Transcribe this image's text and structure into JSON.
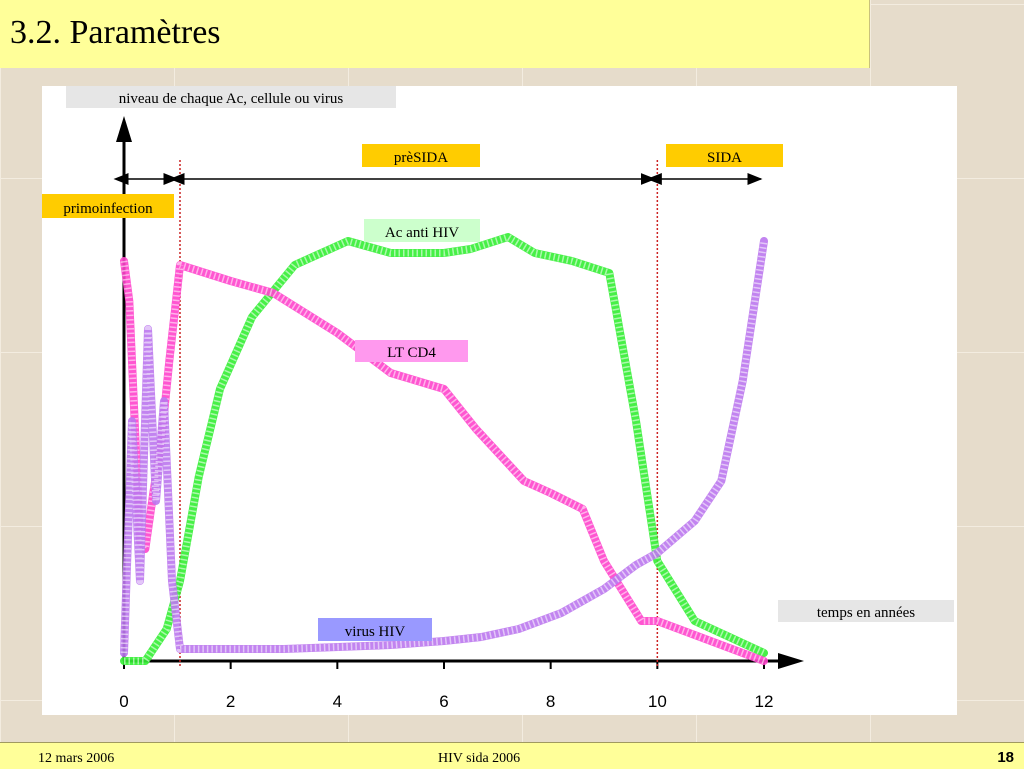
{
  "slide": {
    "title": "3.2. Paramètres"
  },
  "footer": {
    "date": "12 mars 2006",
    "center": "HIV sida 2006",
    "page": "18"
  },
  "chart_data": {
    "type": "line",
    "ylabel": "niveau de chaque Ac, cellule ou virus",
    "xlabel": "temps en années",
    "xlim": [
      0,
      12
    ],
    "ylim": [
      0,
      100
    ],
    "xticks": [
      "0",
      "2",
      "4",
      "6",
      "8",
      "10",
      "12"
    ],
    "phases": [
      {
        "label": "primoinfection",
        "from": 0,
        "to": 1.05,
        "color": "#ffcc00"
      },
      {
        "label": "prèSIDA",
        "from": 1.05,
        "to": 10,
        "color": "#ffcc00"
      },
      {
        "label": "SIDA",
        "from": 10,
        "to": 12,
        "color": "#ffcc00"
      }
    ],
    "series": [
      {
        "name": "Ac anti HIV",
        "color": "#33ee33",
        "label_color": "#ccffcc",
        "x": [
          0,
          0.4,
          0.8,
          1.05,
          1.4,
          1.8,
          2.4,
          3.2,
          4.2,
          5,
          6,
          6.5,
          7.2,
          7.7,
          8.4,
          9.1,
          9.6,
          10,
          10.7,
          12
        ],
        "y": [
          0,
          0,
          8,
          20,
          46,
          68,
          86,
          99,
          105,
          102,
          102,
          103,
          106,
          102,
          100,
          97,
          60,
          25,
          10,
          2
        ]
      },
      {
        "name": "LT CD4",
        "color": "#ff44cc",
        "label_color": "#ff99ee",
        "x": [
          0,
          0.1,
          0.3,
          0.4,
          0.55,
          0.7,
          0.85,
          1.05,
          2,
          2.8,
          4,
          5,
          6,
          6.6,
          7.5,
          8,
          8.6,
          9,
          9.7,
          10,
          11,
          12
        ],
        "y": [
          100,
          90,
          30,
          28,
          42,
          55,
          75,
          99,
          95,
          92,
          82,
          72,
          68,
          58,
          45,
          42,
          38,
          25,
          10,
          10,
          5,
          0
        ]
      },
      {
        "name": "virus HIV",
        "color": "#bb77ee",
        "label_color": "#9999ff",
        "x": [
          0,
          0.15,
          0.3,
          0.45,
          0.6,
          0.75,
          0.9,
          1.05,
          1.5,
          3,
          5,
          6,
          6.7,
          7.4,
          8.2,
          9,
          9.6,
          10,
          10.7,
          11.2,
          11.6,
          12
        ],
        "y": [
          2,
          60,
          20,
          83,
          40,
          65,
          20,
          3,
          3,
          3,
          4,
          5,
          6,
          8,
          12,
          18,
          24,
          27,
          35,
          45,
          70,
          105
        ]
      }
    ],
    "grid": false,
    "legend": "inline labels"
  }
}
